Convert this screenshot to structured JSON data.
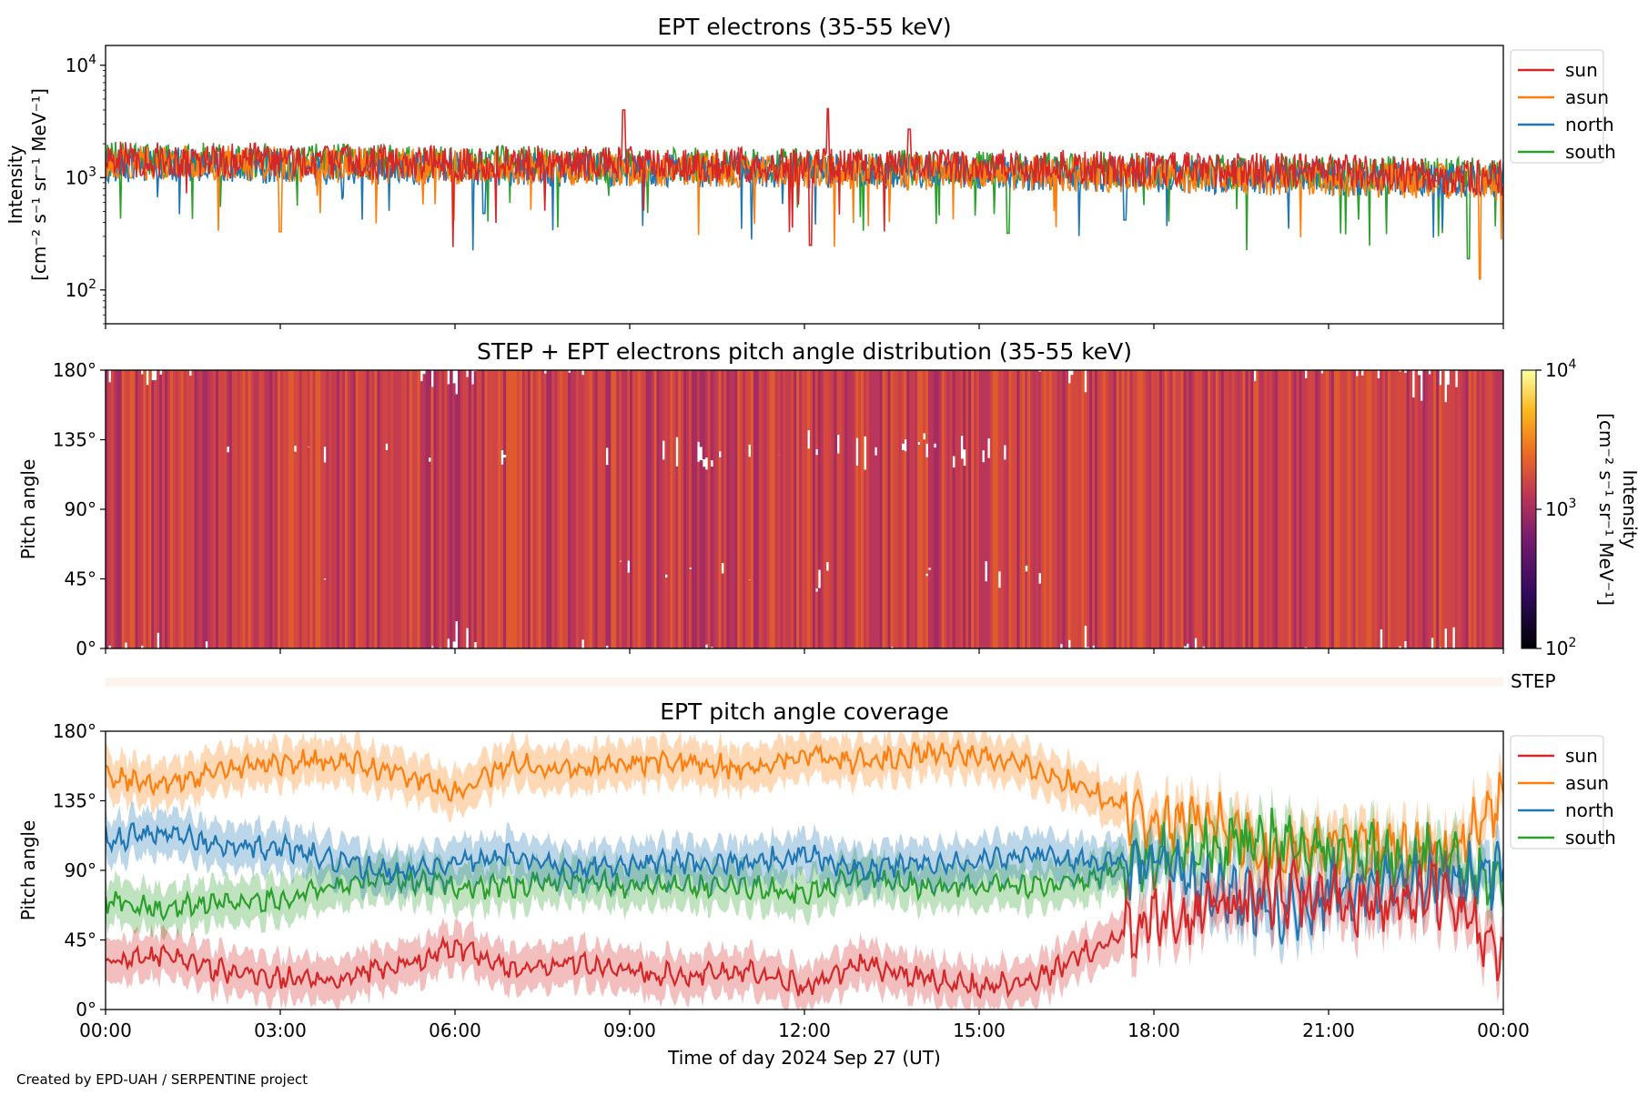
{
  "figure": {
    "footer": "Created by EPD-UAH / SERPENTINE project",
    "xlabel": "Time of day 2024 Sep 27 (UT)",
    "xticks": [
      "00:00",
      "03:00",
      "06:00",
      "09:00",
      "12:00",
      "15:00",
      "18:00",
      "21:00",
      "00:00"
    ]
  },
  "colors": {
    "sun": "#d62728",
    "asun": "#ff7f0e",
    "north": "#1f77b4",
    "south": "#2ca02c"
  },
  "chart_data": [
    {
      "type": "line",
      "title": "EPT electrons (35-55 keV)",
      "ylabel": [
        "Intensity",
        "[cm⁻² s⁻¹ sr⁻¹ MeV⁻¹]"
      ],
      "yscale": "log",
      "ylim": [
        50,
        15000
      ],
      "ytick_base": "10",
      "yticks": [
        {
          "value": 100,
          "exp": "2"
        },
        {
          "value": 1000,
          "exp": "3"
        },
        {
          "value": 10000,
          "exp": "4"
        }
      ],
      "xlim_hours": [
        0,
        24
      ],
      "legend_position": "outside-right-top",
      "series": [
        {
          "name": "sun",
          "color": "#d62728",
          "baseline_hours": [
            0,
            3,
            6,
            9,
            12,
            15,
            18,
            21,
            23,
            24
          ],
          "baseline_values": [
            1450,
            1400,
            1350,
            1320,
            1280,
            1250,
            1180,
            1150,
            1000,
            980
          ],
          "peaks": [
            {
              "hour": 8.9,
              "value": 4000
            },
            {
              "hour": 12.4,
              "value": 4100
            },
            {
              "hour": 13.8,
              "value": 2700
            },
            {
              "hour": 12.1,
              "value": 250
            }
          ]
        },
        {
          "name": "asun",
          "color": "#ff7f0e",
          "baseline_hours": [
            0,
            6,
            12,
            18,
            24
          ],
          "baseline_values": [
            1380,
            1250,
            1150,
            1050,
            900
          ],
          "peaks": [
            {
              "hour": 3.0,
              "value": 330
            },
            {
              "hour": 23.6,
              "value": 125
            }
          ]
        },
        {
          "name": "north",
          "color": "#1f77b4",
          "baseline_hours": [
            0,
            6,
            12,
            18,
            24
          ],
          "baseline_values": [
            1300,
            1220,
            1150,
            1050,
            950
          ],
          "peaks": [
            {
              "hour": 6.5,
              "value": 480
            },
            {
              "hour": 17.5,
              "value": 420
            }
          ]
        },
        {
          "name": "south",
          "color": "#2ca02c",
          "baseline_hours": [
            0,
            6,
            12,
            18,
            24
          ],
          "baseline_values": [
            1450,
            1350,
            1250,
            1150,
            1050
          ],
          "peaks": [
            {
              "hour": 15.5,
              "value": 320
            },
            {
              "hour": 23.4,
              "value": 190
            }
          ]
        }
      ]
    },
    {
      "type": "heatmap",
      "title": "STEP + EPT electrons pitch angle distribution (35-55 keV)",
      "ylabel": "Pitch angle",
      "ylim": [
        0,
        180
      ],
      "yticks": [
        "0°",
        "45°",
        "90°",
        "135°",
        "180°"
      ],
      "xlim_hours": [
        0,
        24
      ],
      "colorbar": {
        "label": [
          "Intensity",
          "[cm⁻² s⁻¹ sr⁻¹ MeV⁻¹]"
        ],
        "scale": "log",
        "range": [
          100,
          10000
        ],
        "ticks": [
          {
            "value": 100,
            "exp": "2"
          },
          {
            "value": 1000,
            "exp": "3"
          },
          {
            "value": 10000,
            "exp": "4"
          }
        ],
        "colormap": "inferno"
      },
      "typical_intensity": 1200,
      "gaps_note": "white gaps mark unsampled pitch angles",
      "step_strip_label": "STEP"
    },
    {
      "type": "line",
      "title": "EPT pitch angle coverage",
      "ylabel": "Pitch angle",
      "ylim": [
        0,
        180
      ],
      "yticks": [
        "0°",
        "45°",
        "90°",
        "135°",
        "180°"
      ],
      "xlim_hours": [
        0,
        24
      ],
      "legend_position": "outside-right-top",
      "series": [
        {
          "name": "sun",
          "color": "#d62728",
          "hours": [
            0,
            1,
            2,
            3,
            4,
            5,
            6,
            7,
            8,
            9,
            10,
            11,
            12,
            13,
            14,
            15,
            16,
            17,
            18,
            19,
            20,
            21,
            22,
            23,
            24
          ],
          "values": [
            30,
            35,
            25,
            20,
            20,
            28,
            40,
            25,
            30,
            25,
            22,
            25,
            15,
            30,
            20,
            15,
            20,
            40,
            60,
            65,
            75,
            70,
            70,
            75,
            30
          ]
        },
        {
          "name": "asun",
          "color": "#ff7f0e",
          "hours": [
            0,
            1,
            2,
            3,
            4,
            5,
            6,
            7,
            8,
            9,
            10,
            11,
            12,
            13,
            14,
            15,
            16,
            17,
            18,
            19,
            20,
            21,
            22,
            23,
            24
          ],
          "values": [
            150,
            145,
            155,
            160,
            160,
            155,
            140,
            160,
            155,
            160,
            160,
            155,
            165,
            160,
            165,
            165,
            155,
            140,
            120,
            125,
            100,
            110,
            105,
            100,
            140
          ]
        },
        {
          "name": "north",
          "color": "#1f77b4",
          "hours": [
            0,
            1,
            2,
            3,
            4,
            5,
            6,
            7,
            8,
            9,
            10,
            11,
            12,
            13,
            14,
            15,
            16,
            17,
            18,
            19,
            20,
            21,
            22,
            23,
            24
          ],
          "values": [
            110,
            115,
            105,
            105,
            95,
            90,
            95,
            100,
            90,
            95,
            95,
            95,
            100,
            90,
            95,
            95,
            100,
            95,
            95,
            80,
            60,
            75,
            80,
            85,
            90
          ]
        },
        {
          "name": "south",
          "color": "#2ca02c",
          "hours": [
            0,
            1,
            2,
            3,
            4,
            5,
            6,
            7,
            8,
            9,
            10,
            11,
            12,
            13,
            14,
            15,
            16,
            17,
            18,
            19,
            20,
            21,
            22,
            23,
            24
          ],
          "values": [
            70,
            65,
            70,
            70,
            80,
            85,
            80,
            80,
            85,
            80,
            80,
            80,
            75,
            85,
            80,
            80,
            80,
            85,
            100,
            105,
            110,
            100,
            100,
            95,
            85
          ]
        }
      ]
    }
  ]
}
